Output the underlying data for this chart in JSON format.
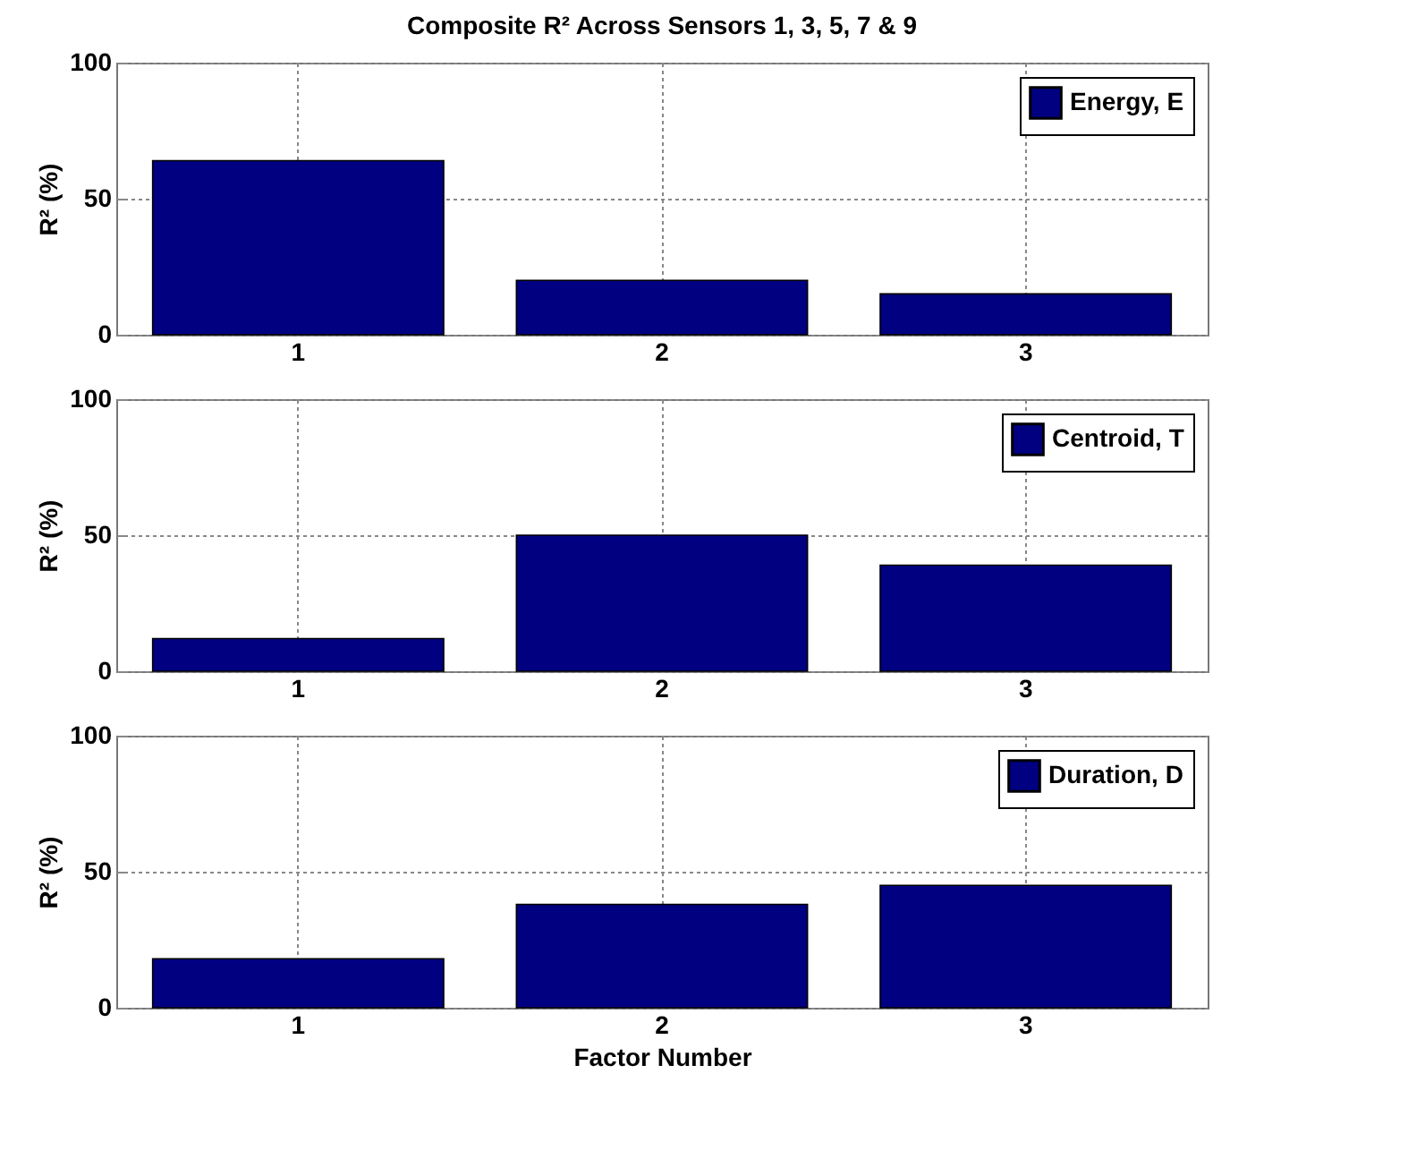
{
  "chart_data": [
    {
      "type": "bar",
      "title": "Composite R² Across Sensors 1, 3, 5, 7 & 9",
      "ylabel": "R² (%)",
      "categories": [
        "1",
        "2",
        "3"
      ],
      "series": [
        {
          "name": "Energy, E",
          "color": "#000080",
          "values": [
            64,
            20,
            15
          ]
        }
      ],
      "ylim": [
        0,
        100
      ],
      "yticks": [
        0,
        50,
        100
      ],
      "grid": true,
      "legend": "top right"
    },
    {
      "type": "bar",
      "ylabel": "R² (%)",
      "categories": [
        "1",
        "2",
        "3"
      ],
      "series": [
        {
          "name": "Centroid, T",
          "color": "#000080",
          "values": [
            12,
            50,
            39
          ]
        }
      ],
      "ylim": [
        0,
        100
      ],
      "yticks": [
        0,
        50,
        100
      ],
      "grid": true,
      "legend": "top right"
    },
    {
      "type": "bar",
      "xlabel": "Factor Number",
      "ylabel": "R² (%)",
      "categories": [
        "1",
        "2",
        "3"
      ],
      "series": [
        {
          "name": "Duration, D",
          "color": "#000080",
          "values": [
            18,
            38,
            45
          ]
        }
      ],
      "ylim": [
        0,
        100
      ],
      "yticks": [
        0,
        50,
        100
      ],
      "grid": true,
      "legend": "top right"
    }
  ]
}
